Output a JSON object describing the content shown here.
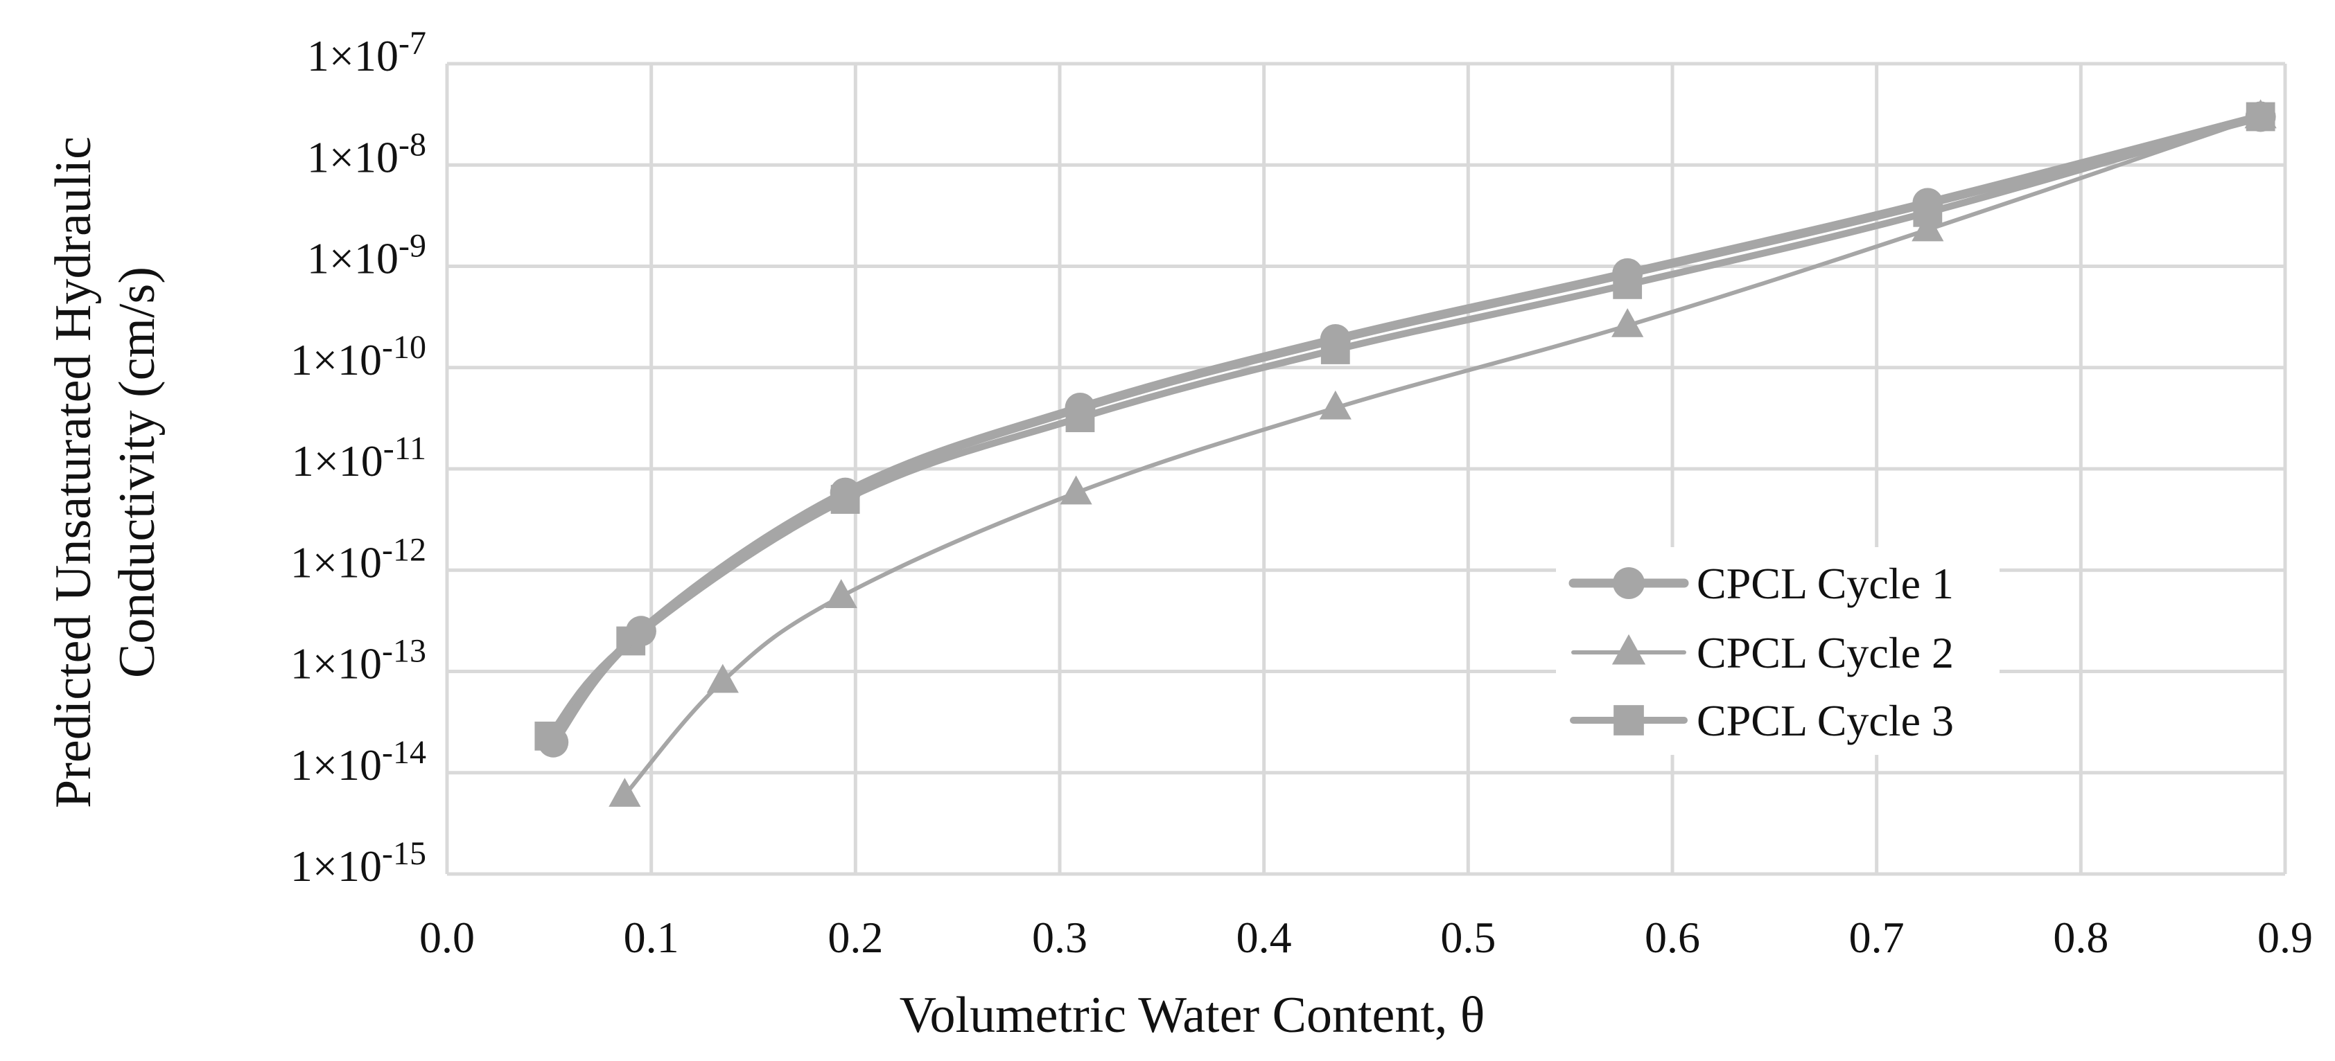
{
  "chart_data": {
    "type": "line",
    "title": "",
    "xlabel": "Volumetric Water Content, θ",
    "ylabel_lines": [
      "Predicted Unsaturated Hydraulic",
      "Conductivity (cm/s)"
    ],
    "xlim": [
      0.0,
      0.9
    ],
    "x_ticks": [
      {
        "value": 0.0,
        "label": "0.0"
      },
      {
        "value": 0.1,
        "label": "0.1"
      },
      {
        "value": 0.2,
        "label": "0.2"
      },
      {
        "value": 0.3,
        "label": "0.3"
      },
      {
        "value": 0.4,
        "label": "0.4"
      },
      {
        "value": 0.5,
        "label": "0.5"
      },
      {
        "value": 0.6,
        "label": "0.6"
      },
      {
        "value": 0.7,
        "label": "0.7"
      },
      {
        "value": 0.8,
        "label": "0.8"
      },
      {
        "value": 0.9,
        "label": "0.9"
      }
    ],
    "y_scale": "log10",
    "ylim_log10": [
      -15,
      -7
    ],
    "y_ticks": [
      {
        "exp": -7,
        "base": "1×10",
        "sup": "-7"
      },
      {
        "exp": -8,
        "base": "1×10",
        "sup": "-8"
      },
      {
        "exp": -9,
        "base": "1×10",
        "sup": "-9"
      },
      {
        "exp": -10,
        "base": "1×10",
        "sup": "-10"
      },
      {
        "exp": -11,
        "base": "1×10",
        "sup": "-11"
      },
      {
        "exp": -12,
        "base": "1×10",
        "sup": "-12"
      },
      {
        "exp": -13,
        "base": "1×10",
        "sup": "-13"
      },
      {
        "exp": -14,
        "base": "1×10",
        "sup": "-14"
      },
      {
        "exp": -15,
        "base": "1×10",
        "sup": "-15"
      }
    ],
    "grid": true,
    "legend_position": "lower-right",
    "series": [
      {
        "name": "CPCL Cycle 1",
        "marker": "circle",
        "line_weight": "thick",
        "x": [
          0.052,
          0.095,
          0.195,
          0.31,
          0.435,
          0.578,
          0.725,
          0.888
        ],
        "y": [
          2e-14,
          2.5e-13,
          5.8e-12,
          4e-11,
          1.9e-10,
          8.5e-10,
          4.2e-09,
          3e-08
        ]
      },
      {
        "name": "CPCL Cycle 2",
        "marker": "triangle",
        "line_weight": "thin",
        "x": [
          0.087,
          0.135,
          0.193,
          0.308,
          0.435,
          0.578,
          0.725,
          0.888
        ],
        "y": [
          6e-15,
          8e-14,
          5.5e-13,
          5.8e-12,
          4e-11,
          2.6e-10,
          2.3e-09,
          3e-08
        ]
      },
      {
        "name": "CPCL Cycle 3",
        "marker": "square",
        "line_weight": "medium",
        "x": [
          0.05,
          0.09,
          0.195,
          0.31,
          0.435,
          0.578,
          0.725,
          0.888
        ],
        "y": [
          2.3e-14,
          2e-13,
          5e-12,
          3.2e-11,
          1.5e-10,
          6.6e-10,
          3.4e-09,
          3e-08
        ]
      }
    ],
    "colors": {
      "series": "#a6a6a6",
      "grid": "#d9d9d9",
      "text": "#111111"
    }
  }
}
